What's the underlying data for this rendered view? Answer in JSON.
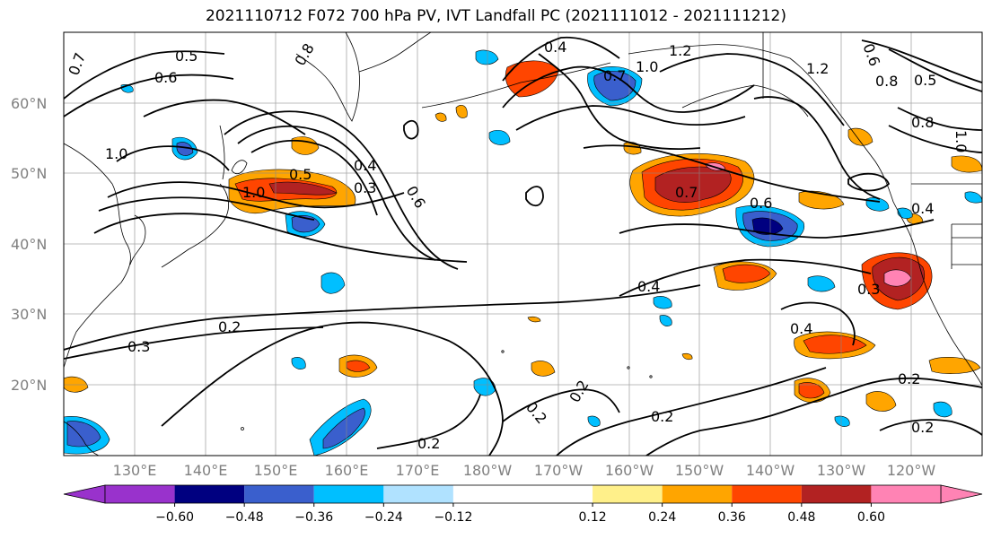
{
  "title": "2021110712 F072 700 hPa PV, IVT Landfall PC (2021111012 - 2021111212)",
  "lat_labels": [
    "60°N",
    "50°N",
    "40°N",
    "30°N",
    "20°N"
  ],
  "lon_labels": [
    "130°E",
    "140°E",
    "150°E",
    "160°E",
    "170°E",
    "180°W",
    "170°W",
    "160°W",
    "150°W",
    "140°W",
    "130°W",
    "120°W"
  ],
  "colorbar": {
    "colors": [
      "#9932cc",
      "#000080",
      "#3a5fcd",
      "#00bfff",
      "#b0e2ff",
      "#ffffff",
      "#fff08a",
      "#ffa500",
      "#ff4500",
      "#b22222",
      "#ff83b4",
      "#ff83b4"
    ],
    "under_color": "#9932cc",
    "over_color": "#ff83b4",
    "tick_labels": [
      "−0.60",
      "−0.48",
      "−0.36",
      "−0.24",
      "−0.12",
      "0.12",
      "0.24",
      "0.36",
      "0.48",
      "0.60"
    ],
    "ticks": [
      -0.6,
      -0.48,
      -0.36,
      -0.24,
      -0.12,
      0.12,
      0.24,
      0.36,
      0.48,
      0.6
    ]
  },
  "contour_labels": [
    "0.5",
    "0.6",
    "0.7",
    "1.0",
    "0.8",
    "0.4",
    "0.7",
    "1.0",
    "1.2",
    "1.2",
    "0.6",
    "0.8",
    "0.5",
    "0.8",
    "1.0",
    "1.0",
    "0.5",
    "0.4",
    "0.3",
    "0.6",
    "0.7",
    "0.6",
    "0.4",
    "0.4",
    "0.3",
    "0.4",
    "0.3",
    "0.2",
    "0.2",
    "0.2",
    "0.2",
    "0.2",
    "0.2",
    "0.2"
  ]
}
